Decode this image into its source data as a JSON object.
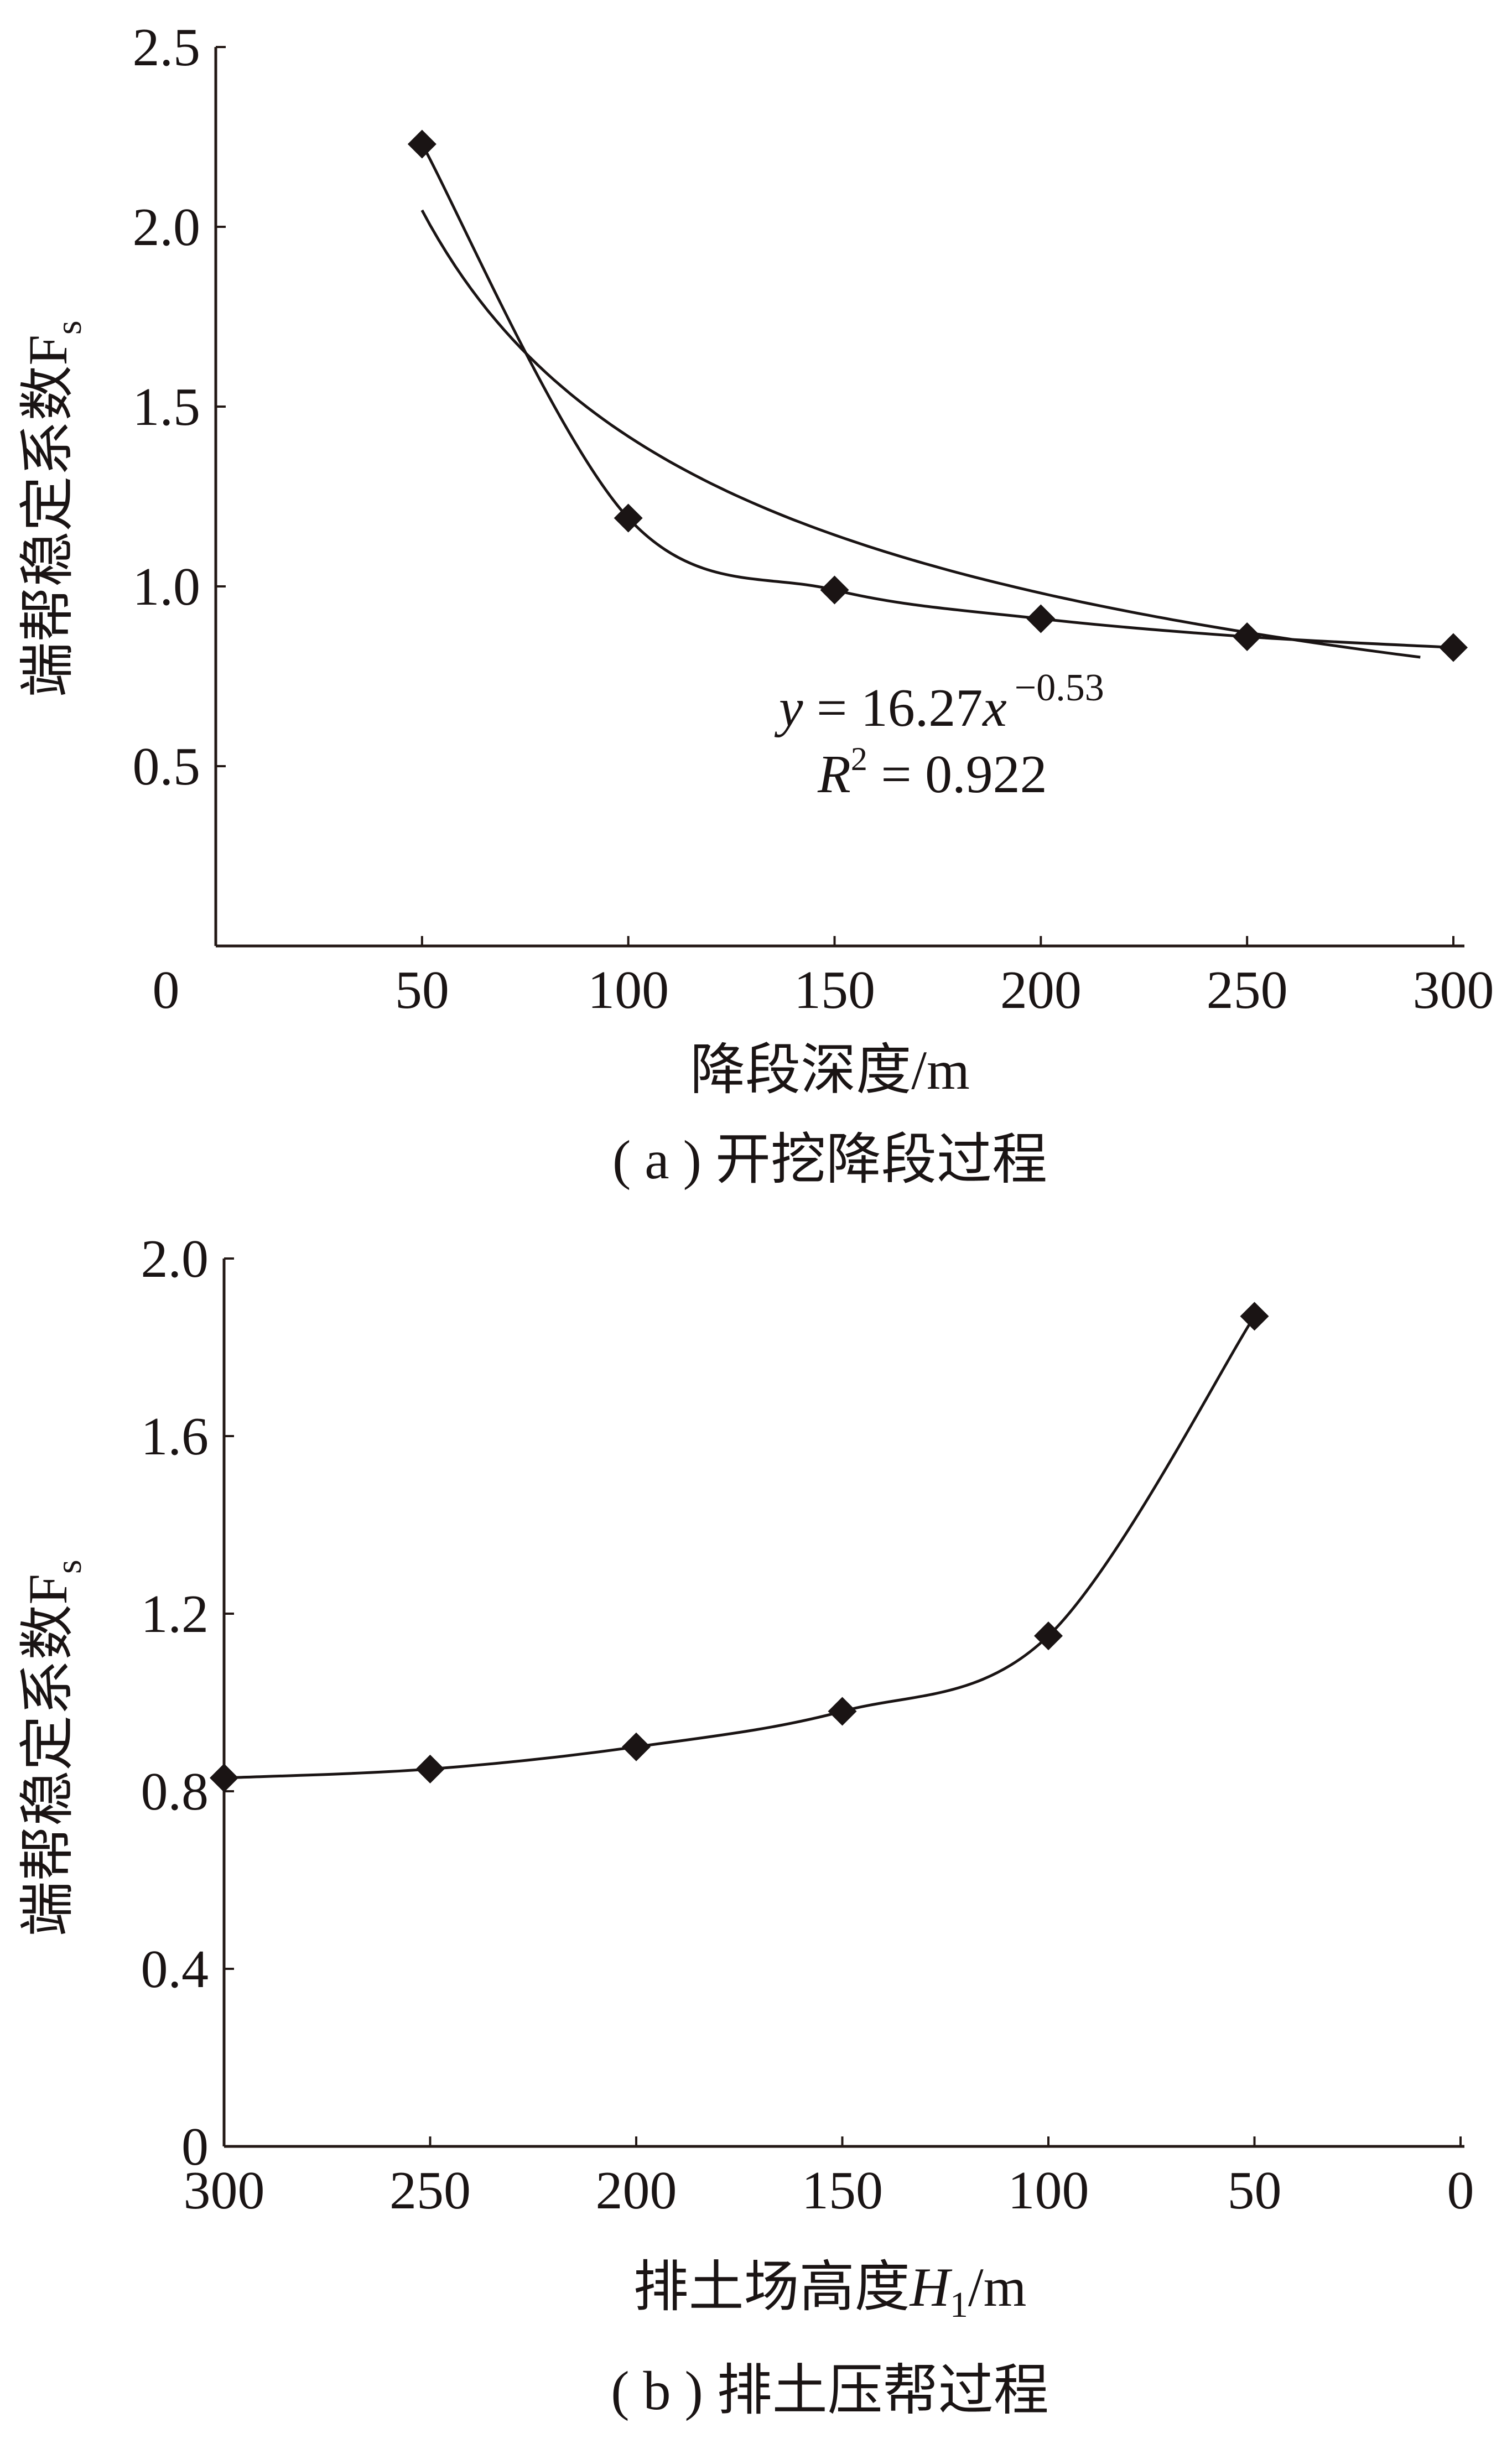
{
  "chart_data": [
    {
      "type": "line",
      "panel": "a",
      "caption": "( a ) 开挖降段过程",
      "xlabel": "降段深度/m",
      "ylabel": "端帮稳定系数F",
      "ylabel_sub": "s",
      "xlim": [
        0,
        300
      ],
      "ylim": [
        0,
        2.5
      ],
      "x_axis_reversed": false,
      "x_ticks": [
        "0",
        "50",
        "100",
        "150",
        "200",
        "250",
        "300"
      ],
      "y_ticks": [
        "0.5",
        "1.0",
        "1.5",
        "2.0",
        "2.5"
      ],
      "y_tick_values": [
        0.5,
        1.0,
        1.5,
        2.0,
        2.5
      ],
      "grid": false,
      "series": [
        {
          "marker": "diamond",
          "smooth": true,
          "x": [
            50,
            100,
            150,
            200,
            250,
            300
          ],
          "y": [
            2.23,
            1.19,
            0.99,
            0.91,
            0.86,
            0.83
          ]
        }
      ],
      "trendline": {
        "type": "power",
        "a": 16.27,
        "b": -0.53,
        "x_range": [
          50,
          292
        ],
        "equation": {
          "y_var": "y",
          "equals_coef": " = 16.27",
          "x_var": "x",
          "exponent": "−0.53"
        },
        "r2": {
          "var": "R",
          "sup": "2",
          "value_text": " = 0.922"
        }
      }
    },
    {
      "type": "line",
      "panel": "b",
      "caption": "( b ) 排土压帮过程",
      "xlabel_prefix": "排土场高度",
      "xlabel_var": "H",
      "xlabel_sub": "1",
      "xlabel_unit": "/m",
      "ylabel": "端帮稳定系数F",
      "ylabel_sub": "s",
      "xlim": [
        300,
        0
      ],
      "ylim": [
        0,
        2.0
      ],
      "x_axis_reversed": true,
      "x_ticks": [
        "300",
        "250",
        "200",
        "150",
        "100",
        "50",
        "0"
      ],
      "y_ticks": [
        "0",
        "0.4",
        "0.8",
        "1.2",
        "1.6",
        "2.0"
      ],
      "y_tick_values": [
        0,
        0.4,
        0.8,
        1.2,
        1.6,
        2.0
      ],
      "grid": false,
      "series": [
        {
          "marker": "diamond",
          "smooth": true,
          "x": [
            300,
            250,
            200,
            150,
            100,
            50
          ],
          "y": [
            0.83,
            0.85,
            0.9,
            0.98,
            1.15,
            1.87
          ]
        }
      ]
    }
  ],
  "colors": {
    "ink": "#1a1414",
    "axis": "#231815"
  }
}
